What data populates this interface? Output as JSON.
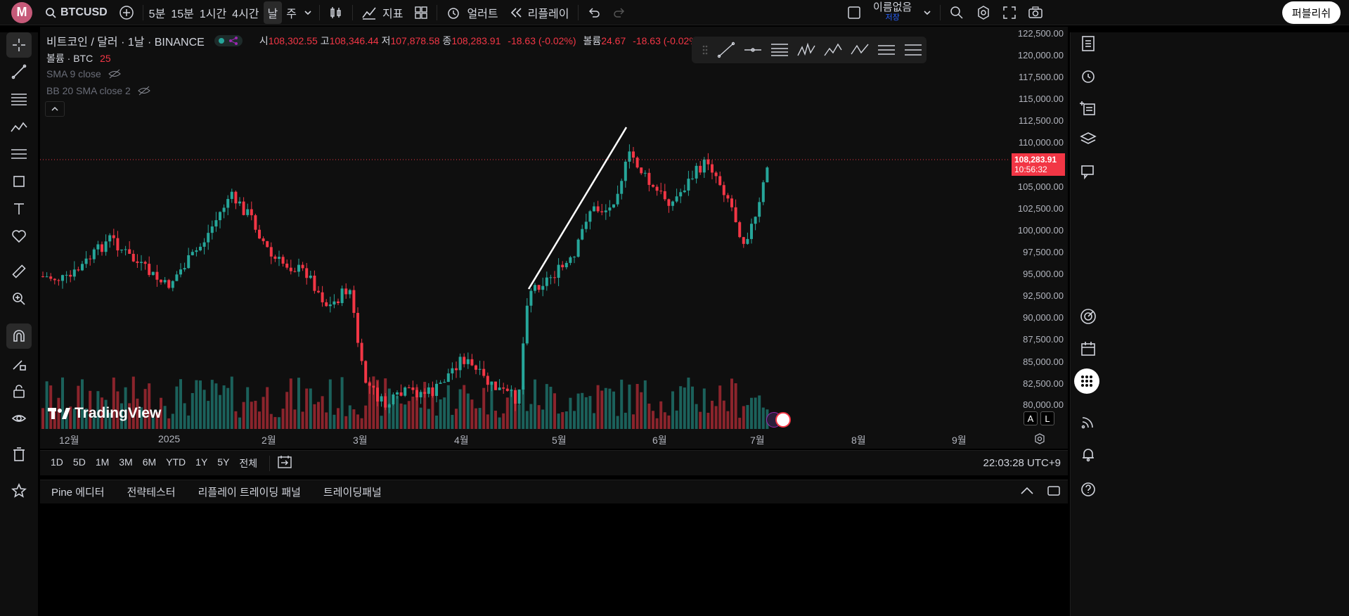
{
  "topbar": {
    "avatar": "M",
    "symbol": "BTCUSD",
    "intervals": [
      "5분",
      "15분",
      "1시간",
      "4시간",
      "날",
      "주"
    ],
    "active_interval": "날",
    "indicators_label": "지표",
    "alerts_label": "얼러트",
    "replay_label": "리플레이",
    "layout_name": "이름없음",
    "layout_sub": "저장",
    "publish_label": "퍼블리쉬"
  },
  "legend": {
    "title": "비트코인 / 달러 · 1날 · BINANCE",
    "o_label": "시",
    "o": "108,302.55",
    "h_label": "고",
    "h": "108,346.44",
    "l_label": "저",
    "l": "107,878.58",
    "c_label": "종",
    "c": "108,283.91",
    "change": "-18.63 (-0.02%)",
    "vol_label": "볼륨",
    "vol": "24.67",
    "vol_change": "-18.63 (-0.02%)",
    "volume_row": "볼륨 · BTC",
    "volume_value": "25",
    "sma": "SMA 9 close",
    "bb": "BB 20 SMA close 2"
  },
  "price_axis": {
    "ticks": [
      "122,500.00",
      "120,000.00",
      "117,500.00",
      "115,000.00",
      "112,500.00",
      "110,000.00",
      "105,000.00",
      "102,500.00",
      "100,000.00",
      "97,500.00",
      "95,000.00",
      "92,500.00",
      "90,000.00",
      "87,500.00",
      "85,000.00",
      "82,500.00",
      "80,000.00"
    ],
    "last_price": "108,283.91",
    "countdown": "10:56:32"
  },
  "time_axis": [
    "12월",
    "2025",
    "2월",
    "3월",
    "4월",
    "5월",
    "6월",
    "7월",
    "8월",
    "9월"
  ],
  "bottom": {
    "ranges": [
      "1D",
      "5D",
      "1M",
      "3M",
      "6M",
      "YTD",
      "1Y",
      "5Y",
      "전체"
    ],
    "clock": "22:03:28 UTC+9",
    "tabs": [
      "Pine 에디터",
      "전략테스터",
      "리플레이 트레이딩 패널",
      "트레이딩패널"
    ]
  },
  "watermark": "TradingView",
  "colors": {
    "up": "#26a69a",
    "down": "#f23645",
    "bg": "#0f0f0f"
  }
}
